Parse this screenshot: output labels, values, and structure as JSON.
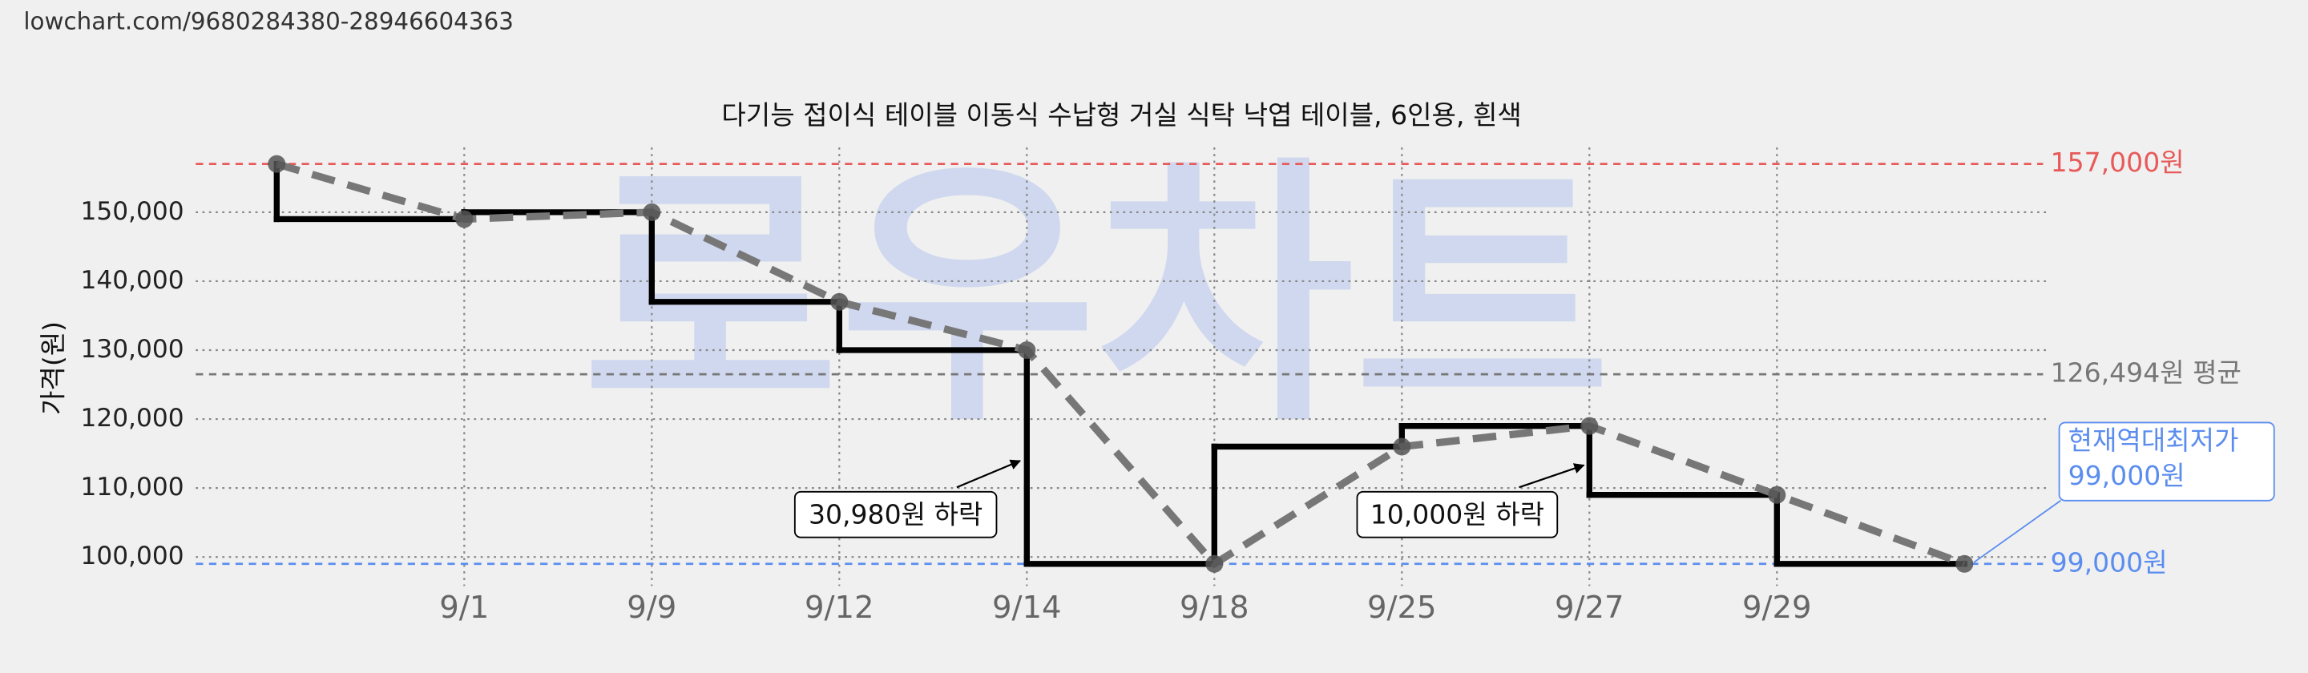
{
  "site_url": "lowchart.com/9680284380-28946604363",
  "chart_data": {
    "type": "line",
    "title": "다기능 접이식 테이블 이동식 수납형 거실 식탁 낙엽 테이블, 6인용, 흰색",
    "watermark": "로우차트",
    "y_label": "가격(원)",
    "categories": [
      null,
      "9/1",
      "9/9",
      "9/12",
      "9/14",
      "9/18",
      "9/25",
      "9/27",
      "9/29",
      null
    ],
    "series": [
      {
        "values": [
          157000,
          149000,
          150000,
          137000,
          130000,
          99000,
          116000,
          119000,
          109000,
          99000
        ],
        "color": "#777777",
        "step_color": "#000000"
      }
    ],
    "ylim": [
      95800,
      159400
    ],
    "yticks": [
      {
        "value": 100000,
        "label": "100,000"
      },
      {
        "value": 110000,
        "label": "110,000"
      },
      {
        "value": 120000,
        "label": "120,000"
      },
      {
        "value": 130000,
        "label": "130,000"
      },
      {
        "value": 140000,
        "label": "140,000"
      },
      {
        "value": 150000,
        "label": "150,000"
      }
    ],
    "grid": true,
    "reference_lines": [
      {
        "value": 157000,
        "label": "157,000원",
        "color": "#e85a5a"
      },
      {
        "value": 126494,
        "label": "126,494원 평균",
        "color": "#777777"
      },
      {
        "value": 99000,
        "label": "99,000원",
        "color": "#5b8def"
      }
    ],
    "annotations": [
      {
        "text": "30,980원 하락"
      },
      {
        "text": "10,000원 하락"
      },
      {
        "text": [
          "현재역대최저가",
          "99,000원"
        ]
      }
    ]
  }
}
